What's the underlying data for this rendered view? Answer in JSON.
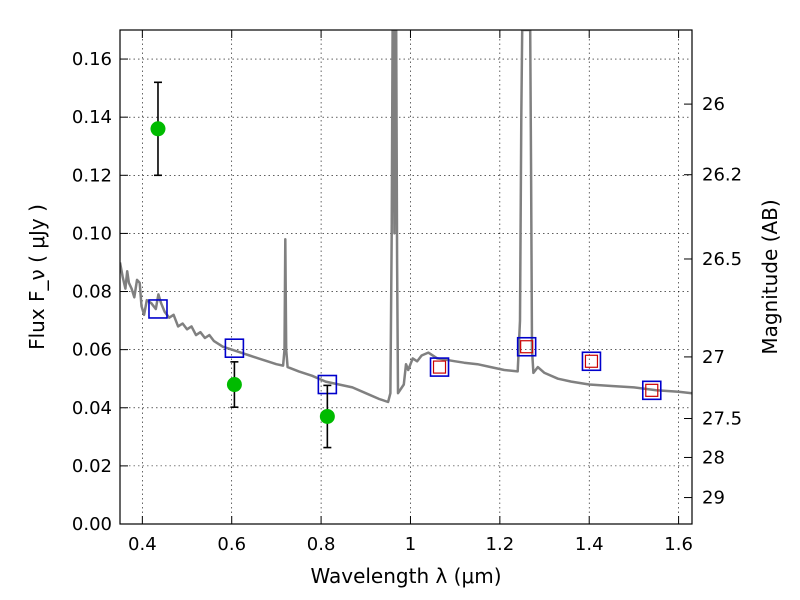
{
  "chart_data": {
    "type": "scatter",
    "xlabel": "Wavelength  λ (μm)",
    "ylabel": "Flux  F_ν  ( μJy )",
    "ylabel_right": "Magnitude (AB)",
    "xlim": [
      0.35,
      1.63
    ],
    "ylim": [
      0.0,
      0.17
    ],
    "x_ticks": [
      0.4,
      0.6,
      0.8,
      1.0,
      1.2,
      1.4,
      1.6
    ],
    "x_tick_labels": [
      "0.4",
      "0.6",
      "0.8",
      "1",
      "1.2",
      "1.4",
      "1.6"
    ],
    "y_ticks": [
      0.0,
      0.02,
      0.04,
      0.06,
      0.08,
      0.1,
      0.12,
      0.14,
      0.16
    ],
    "y_tick_labels": [
      "0.00",
      "0.02",
      "0.04",
      "0.06",
      "0.08",
      "0.10",
      "0.12",
      "0.14",
      "0.16"
    ],
    "right_ticks": [
      {
        "label": "26",
        "flux": 0.1445
      },
      {
        "label": "26.2",
        "flux": 0.1202
      },
      {
        "label": "26.5",
        "flux": 0.0912
      },
      {
        "label": "27",
        "flux": 0.0575
      },
      {
        "label": "27.5",
        "flux": 0.0363
      },
      {
        "label": "28",
        "flux": 0.0229
      },
      {
        "label": "29",
        "flux": 0.0091
      }
    ],
    "grid": true,
    "colors": {
      "model_spectrum": "#808080",
      "observed": "#00bb00",
      "model_photometry_box": "#0000cc",
      "model_photometry_inner": "#cc0000",
      "errorbar": "#000000"
    },
    "observed": [
      {
        "x": 0.435,
        "y": 0.136,
        "err": 0.016
      },
      {
        "x": 0.606,
        "y": 0.048,
        "err": 0.0078
      },
      {
        "x": 0.814,
        "y": 0.037,
        "err": 0.0107
      }
    ],
    "model_photometry": [
      {
        "x": 0.435,
        "y": 0.074,
        "inner": false
      },
      {
        "x": 0.606,
        "y": 0.0605,
        "inner": false
      },
      {
        "x": 0.814,
        "y": 0.048,
        "inner": false
      },
      {
        "x": 1.065,
        "y": 0.054,
        "inner": true
      },
      {
        "x": 1.26,
        "y": 0.061,
        "inner": true
      },
      {
        "x": 1.405,
        "y": 0.056,
        "inner": true
      },
      {
        "x": 1.54,
        "y": 0.046,
        "inner": true
      }
    ],
    "model_spectrum": [
      [
        0.35,
        0.09
      ],
      [
        0.356,
        0.085
      ],
      [
        0.362,
        0.081
      ],
      [
        0.366,
        0.087
      ],
      [
        0.37,
        0.083
      ],
      [
        0.376,
        0.081
      ],
      [
        0.382,
        0.078
      ],
      [
        0.388,
        0.084
      ],
      [
        0.394,
        0.083
      ],
      [
        0.398,
        0.075
      ],
      [
        0.404,
        0.072
      ],
      [
        0.41,
        0.077
      ],
      [
        0.42,
        0.076
      ],
      [
        0.43,
        0.074
      ],
      [
        0.436,
        0.079
      ],
      [
        0.442,
        0.076
      ],
      [
        0.45,
        0.073
      ],
      [
        0.46,
        0.071
      ],
      [
        0.47,
        0.072
      ],
      [
        0.48,
        0.068
      ],
      [
        0.49,
        0.069
      ],
      [
        0.5,
        0.067
      ],
      [
        0.51,
        0.068
      ],
      [
        0.52,
        0.065
      ],
      [
        0.53,
        0.066
      ],
      [
        0.54,
        0.064
      ],
      [
        0.55,
        0.065
      ],
      [
        0.56,
        0.063
      ],
      [
        0.57,
        0.062
      ],
      [
        0.58,
        0.061
      ],
      [
        0.6,
        0.06
      ],
      [
        0.62,
        0.059
      ],
      [
        0.64,
        0.058
      ],
      [
        0.66,
        0.057
      ],
      [
        0.68,
        0.056
      ],
      [
        0.7,
        0.055
      ],
      [
        0.715,
        0.0545
      ],
      [
        0.718,
        0.06
      ],
      [
        0.72,
        0.098
      ],
      [
        0.722,
        0.06
      ],
      [
        0.725,
        0.054
      ],
      [
        0.75,
        0.0525
      ],
      [
        0.78,
        0.051
      ],
      [
        0.81,
        0.049
      ],
      [
        0.84,
        0.048
      ],
      [
        0.87,
        0.047
      ],
      [
        0.9,
        0.045
      ],
      [
        0.93,
        0.043
      ],
      [
        0.95,
        0.042
      ],
      [
        0.955,
        0.045
      ],
      [
        0.958,
        0.1
      ],
      [
        0.96,
        0.17
      ],
      [
        0.962,
        0.17
      ],
      [
        0.964,
        0.1
      ],
      [
        0.966,
        0.17
      ],
      [
        0.968,
        0.17
      ],
      [
        0.97,
        0.09
      ],
      [
        0.972,
        0.045
      ],
      [
        0.985,
        0.048
      ],
      [
        0.99,
        0.055
      ],
      [
        0.995,
        0.053
      ],
      [
        1.005,
        0.057
      ],
      [
        1.015,
        0.056
      ],
      [
        1.025,
        0.058
      ],
      [
        1.04,
        0.059
      ],
      [
        1.06,
        0.057
      ],
      [
        1.08,
        0.0565
      ],
      [
        1.1,
        0.056
      ],
      [
        1.12,
        0.0555
      ],
      [
        1.15,
        0.055
      ],
      [
        1.18,
        0.054
      ],
      [
        1.21,
        0.053
      ],
      [
        1.24,
        0.0525
      ],
      [
        1.245,
        0.07
      ],
      [
        1.248,
        0.14
      ],
      [
        1.25,
        0.17
      ],
      [
        1.268,
        0.17
      ],
      [
        1.27,
        0.12
      ],
      [
        1.272,
        0.06
      ],
      [
        1.275,
        0.052
      ],
      [
        1.285,
        0.054
      ],
      [
        1.3,
        0.052
      ],
      [
        1.33,
        0.05
      ],
      [
        1.36,
        0.049
      ],
      [
        1.4,
        0.048
      ],
      [
        1.45,
        0.0475
      ],
      [
        1.5,
        0.047
      ],
      [
        1.55,
        0.046
      ],
      [
        1.6,
        0.0455
      ],
      [
        1.63,
        0.045
      ]
    ]
  }
}
